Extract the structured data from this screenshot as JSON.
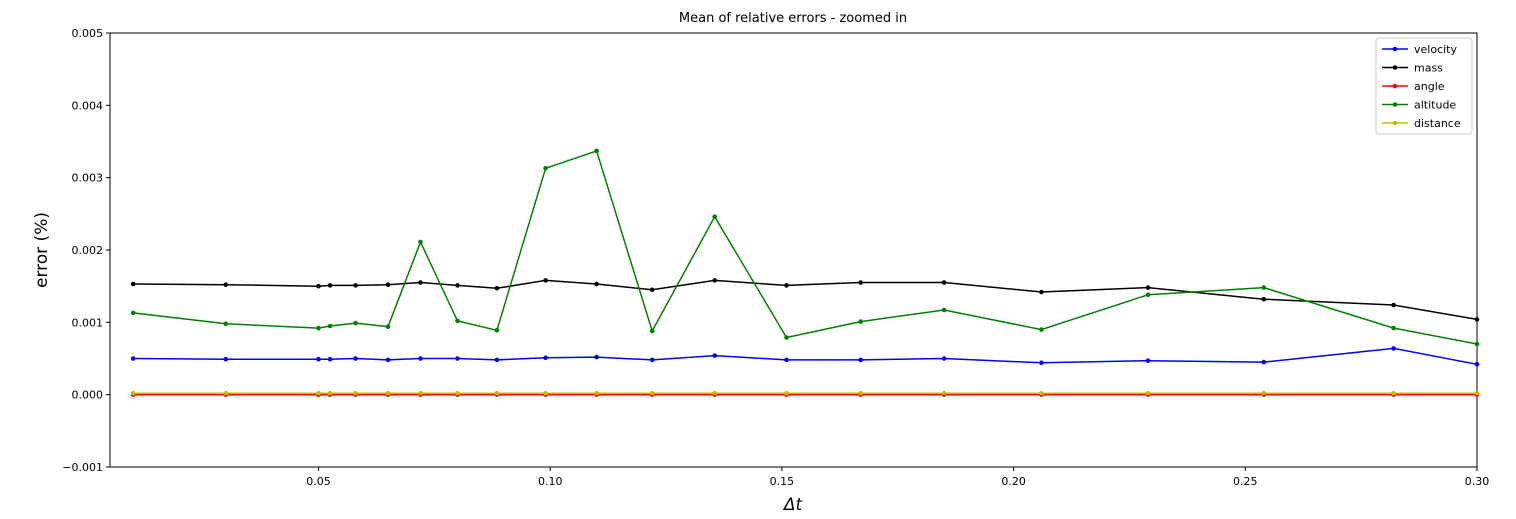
{
  "chart_data": {
    "type": "line",
    "title": "Mean of relative errors - zoomed in",
    "xlabel": "Δt",
    "ylabel": "error (%)",
    "xlim": [
      0.005,
      0.3
    ],
    "ylim": [
      -0.001,
      0.005
    ],
    "xticks": [
      0.05,
      0.1,
      0.15,
      0.2,
      0.25,
      0.3
    ],
    "xtick_labels": [
      "0.05",
      "0.10",
      "0.15",
      "0.20",
      "0.25",
      "0.30"
    ],
    "yticks": [
      -0.001,
      0.0,
      0.001,
      0.002,
      0.003,
      0.004,
      0.005
    ],
    "ytick_labels": [
      "−0.001",
      "0.000",
      "0.001",
      "0.002",
      "0.003",
      "0.004",
      "0.005"
    ],
    "grid": false,
    "legend_position": "top-right",
    "x": [
      0.01,
      0.03,
      0.05,
      0.0525,
      0.058,
      0.065,
      0.072,
      0.08,
      0.0885,
      0.099,
      0.11,
      0.122,
      0.1355,
      0.151,
      0.167,
      0.185,
      0.206,
      0.229,
      0.254,
      0.282,
      0.3
    ],
    "series": [
      {
        "name": "velocity",
        "color": "#0000ff",
        "values": [
          0.0005,
          0.00049,
          0.00049,
          0.00049,
          0.0005,
          0.00048,
          0.0005,
          0.0005,
          0.00048,
          0.00051,
          0.00052,
          0.00048,
          0.00054,
          0.00048,
          0.00048,
          0.0005,
          0.00044,
          0.00047,
          0.00045,
          0.00064,
          0.00042
        ]
      },
      {
        "name": "mass",
        "color": "#000000",
        "values": [
          0.00153,
          0.00152,
          0.0015,
          0.00151,
          0.00151,
          0.00152,
          0.00155,
          0.00151,
          0.00147,
          0.00158,
          0.00153,
          0.00145,
          0.00158,
          0.00151,
          0.00155,
          0.00155,
          0.00142,
          0.00148,
          0.00132,
          0.00124,
          0.00104
        ]
      },
      {
        "name": "angle",
        "color": "#ff0000",
        "values": [
          0.0,
          0.0,
          0.0,
          0.0,
          0.0,
          0.0,
          0.0,
          0.0,
          0.0,
          0.0,
          0.0,
          0.0,
          0.0,
          0.0,
          0.0,
          0.0,
          0.0,
          0.0,
          0.0,
          0.0,
          0.0
        ]
      },
      {
        "name": "altitude",
        "color": "#008000",
        "values": [
          0.00113,
          0.00098,
          0.00092,
          0.00095,
          0.00099,
          0.00094,
          0.00211,
          0.00102,
          0.00089,
          0.00313,
          0.00337,
          0.00088,
          0.00246,
          0.00079,
          0.00101,
          0.00117,
          0.0009,
          0.00138,
          0.00148,
          0.00092,
          0.0007
        ]
      },
      {
        "name": "distance",
        "color": "#bfbf00",
        "values": [
          2e-05,
          2e-05,
          2e-05,
          2e-05,
          2e-05,
          2e-05,
          2e-05,
          2e-05,
          2e-05,
          2e-05,
          2e-05,
          2e-05,
          2e-05,
          2e-05,
          2e-05,
          2e-05,
          2e-05,
          2e-05,
          2e-05,
          2e-05,
          2e-05
        ]
      }
    ]
  }
}
